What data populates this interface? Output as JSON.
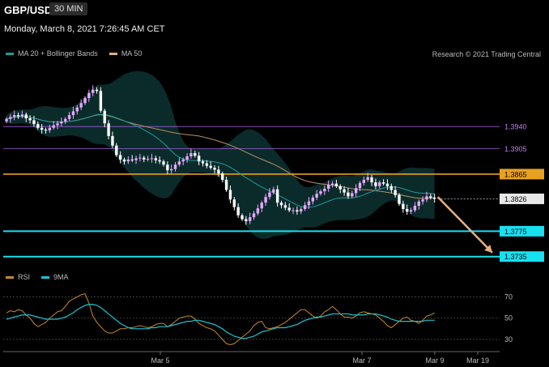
{
  "header": {
    "symbol": "GBP/USD",
    "interval": "30 MIN",
    "datetime": "Monday, March 8, 2021 7:26:45 AM CET",
    "copyright": "Research © 2021 Trading Central"
  },
  "legend_main": [
    {
      "label": "MA 20 + Bollinger Bands",
      "color": "#1e9a9a"
    },
    {
      "label": "MA 50",
      "color": "#e0b080"
    }
  ],
  "legend_rsi": [
    {
      "label": "RSI",
      "color": "#c8882a"
    },
    {
      "label": "9MA",
      "color": "#17c6d6"
    }
  ],
  "colors": {
    "up": "#e8a8ff",
    "down": "#ffffff",
    "resistance_purple": "#9a5cd6",
    "resistance_orange": "#e8a020",
    "support_cyan": "#17e0f0",
    "arrow": "#e8b080",
    "band_fill": "#0f3a3a",
    "ma20": "#1e9a9a",
    "ma50": "#b89060"
  },
  "chart_data": [
    {
      "type": "candlestick",
      "title": "GBP/USD",
      "x_ticks": [
        "Mar 5",
        "Mar 7",
        "Mar 9",
        "Mar 19"
      ],
      "ylim": [
        1.3718,
        1.4045
      ],
      "levels": [
        {
          "value": 1.394,
          "label": "1.3940",
          "kind": "resistance",
          "color": "#9a5cd6"
        },
        {
          "value": 1.3905,
          "label": "1.3905",
          "kind": "resistance",
          "color": "#9a5cd6"
        },
        {
          "value": 1.3865,
          "label": "1.3865",
          "kind": "pivot",
          "color": "#e8a020"
        },
        {
          "value": 1.3775,
          "label": "1.3775",
          "kind": "support",
          "color": "#17e0f0"
        },
        {
          "value": 1.3735,
          "label": "1.3735",
          "kind": "support",
          "color": "#17e0f0"
        }
      ],
      "current_price": {
        "value": 1.3826,
        "label": "1.3826"
      },
      "target_arrow": {
        "from": 1.3829,
        "to": 1.3736
      },
      "close": [
        1.3952,
        1.3955,
        1.3958,
        1.3956,
        1.3959,
        1.3953,
        1.395,
        1.3944,
        1.3938,
        1.3935,
        1.3934,
        1.3938,
        1.3942,
        1.3945,
        1.3948,
        1.3952,
        1.3958,
        1.3964,
        1.397,
        1.3977,
        1.3985,
        1.3993,
        1.3998,
        1.3996,
        1.3965,
        1.3945,
        1.3925,
        1.391,
        1.3895,
        1.3888,
        1.3885,
        1.3888,
        1.3887,
        1.389,
        1.3891,
        1.3888,
        1.3889,
        1.389,
        1.3887,
        1.3885,
        1.388,
        1.3871,
        1.3873,
        1.388,
        1.3885,
        1.3888,
        1.3893,
        1.3898,
        1.3894,
        1.3885,
        1.3882,
        1.3878,
        1.3875,
        1.3872,
        1.3866,
        1.3856,
        1.384,
        1.3825,
        1.3813,
        1.38,
        1.3794,
        1.3791,
        1.3797,
        1.3803,
        1.3811,
        1.382,
        1.3829,
        1.3836,
        1.3841,
        1.382,
        1.3816,
        1.3812,
        1.3808,
        1.3808,
        1.3806,
        1.381,
        1.3816,
        1.3822,
        1.3828,
        1.3834,
        1.3838,
        1.3842,
        1.3848,
        1.385,
        1.3846,
        1.3841,
        1.3836,
        1.383,
        1.3835,
        1.3843,
        1.3851,
        1.3856,
        1.386,
        1.3852,
        1.3846,
        1.3852,
        1.385,
        1.3846,
        1.384,
        1.3832,
        1.3818,
        1.381,
        1.3806,
        1.3808,
        1.3815,
        1.3822,
        1.3825,
        1.383,
        1.3828,
        1.3826
      ],
      "rsi_ylim": [
        20,
        78
      ],
      "rsi_ticks": [
        70,
        50,
        30
      ],
      "rsi": [
        55,
        57,
        56,
        58,
        57,
        53,
        50,
        45,
        42,
        44,
        46,
        50,
        53,
        56,
        57,
        61,
        66,
        68,
        70,
        72,
        73,
        64,
        52,
        46,
        42,
        38,
        36,
        36,
        38,
        40,
        40,
        41,
        41,
        42,
        43,
        42,
        41,
        42,
        44,
        45,
        45,
        42,
        44,
        47,
        50,
        51,
        52,
        52,
        49,
        45,
        43,
        41,
        40,
        38,
        34,
        30,
        26,
        25,
        26,
        29,
        32,
        35,
        38,
        43,
        46,
        47,
        41,
        40,
        41,
        42,
        44,
        46,
        49,
        52,
        55,
        58,
        58,
        55,
        52,
        50,
        52,
        56,
        58,
        61,
        58,
        54,
        51,
        51,
        50,
        52,
        55,
        56,
        55,
        54,
        53,
        50,
        47,
        43,
        41,
        44,
        47,
        50,
        51,
        48,
        47,
        45,
        48,
        52,
        53,
        55
      ],
      "rsi_ma9": [
        49,
        50,
        51,
        52,
        53,
        53,
        53,
        52,
        51,
        50,
        49,
        49,
        49,
        49,
        50,
        51,
        53,
        55,
        58,
        60,
        62,
        63,
        63,
        62,
        60,
        57,
        54,
        51,
        48,
        45,
        43,
        41,
        40,
        40,
        40,
        40,
        40,
        41,
        41,
        42,
        42,
        42,
        43,
        44,
        45,
        46,
        47,
        47,
        48,
        48,
        47,
        46,
        45,
        44,
        42,
        40,
        37,
        35,
        33,
        32,
        31,
        31,
        32,
        33,
        35,
        37,
        38,
        39,
        40,
        41,
        41,
        41,
        42,
        43,
        44,
        46,
        48,
        49,
        50,
        51,
        51,
        52,
        53,
        54,
        54,
        54,
        54,
        54,
        53,
        53,
        53,
        53,
        54,
        54,
        54,
        53,
        52,
        51,
        49,
        48,
        47,
        47,
        47,
        47,
        47,
        47,
        47,
        48,
        48,
        48
      ]
    }
  ]
}
